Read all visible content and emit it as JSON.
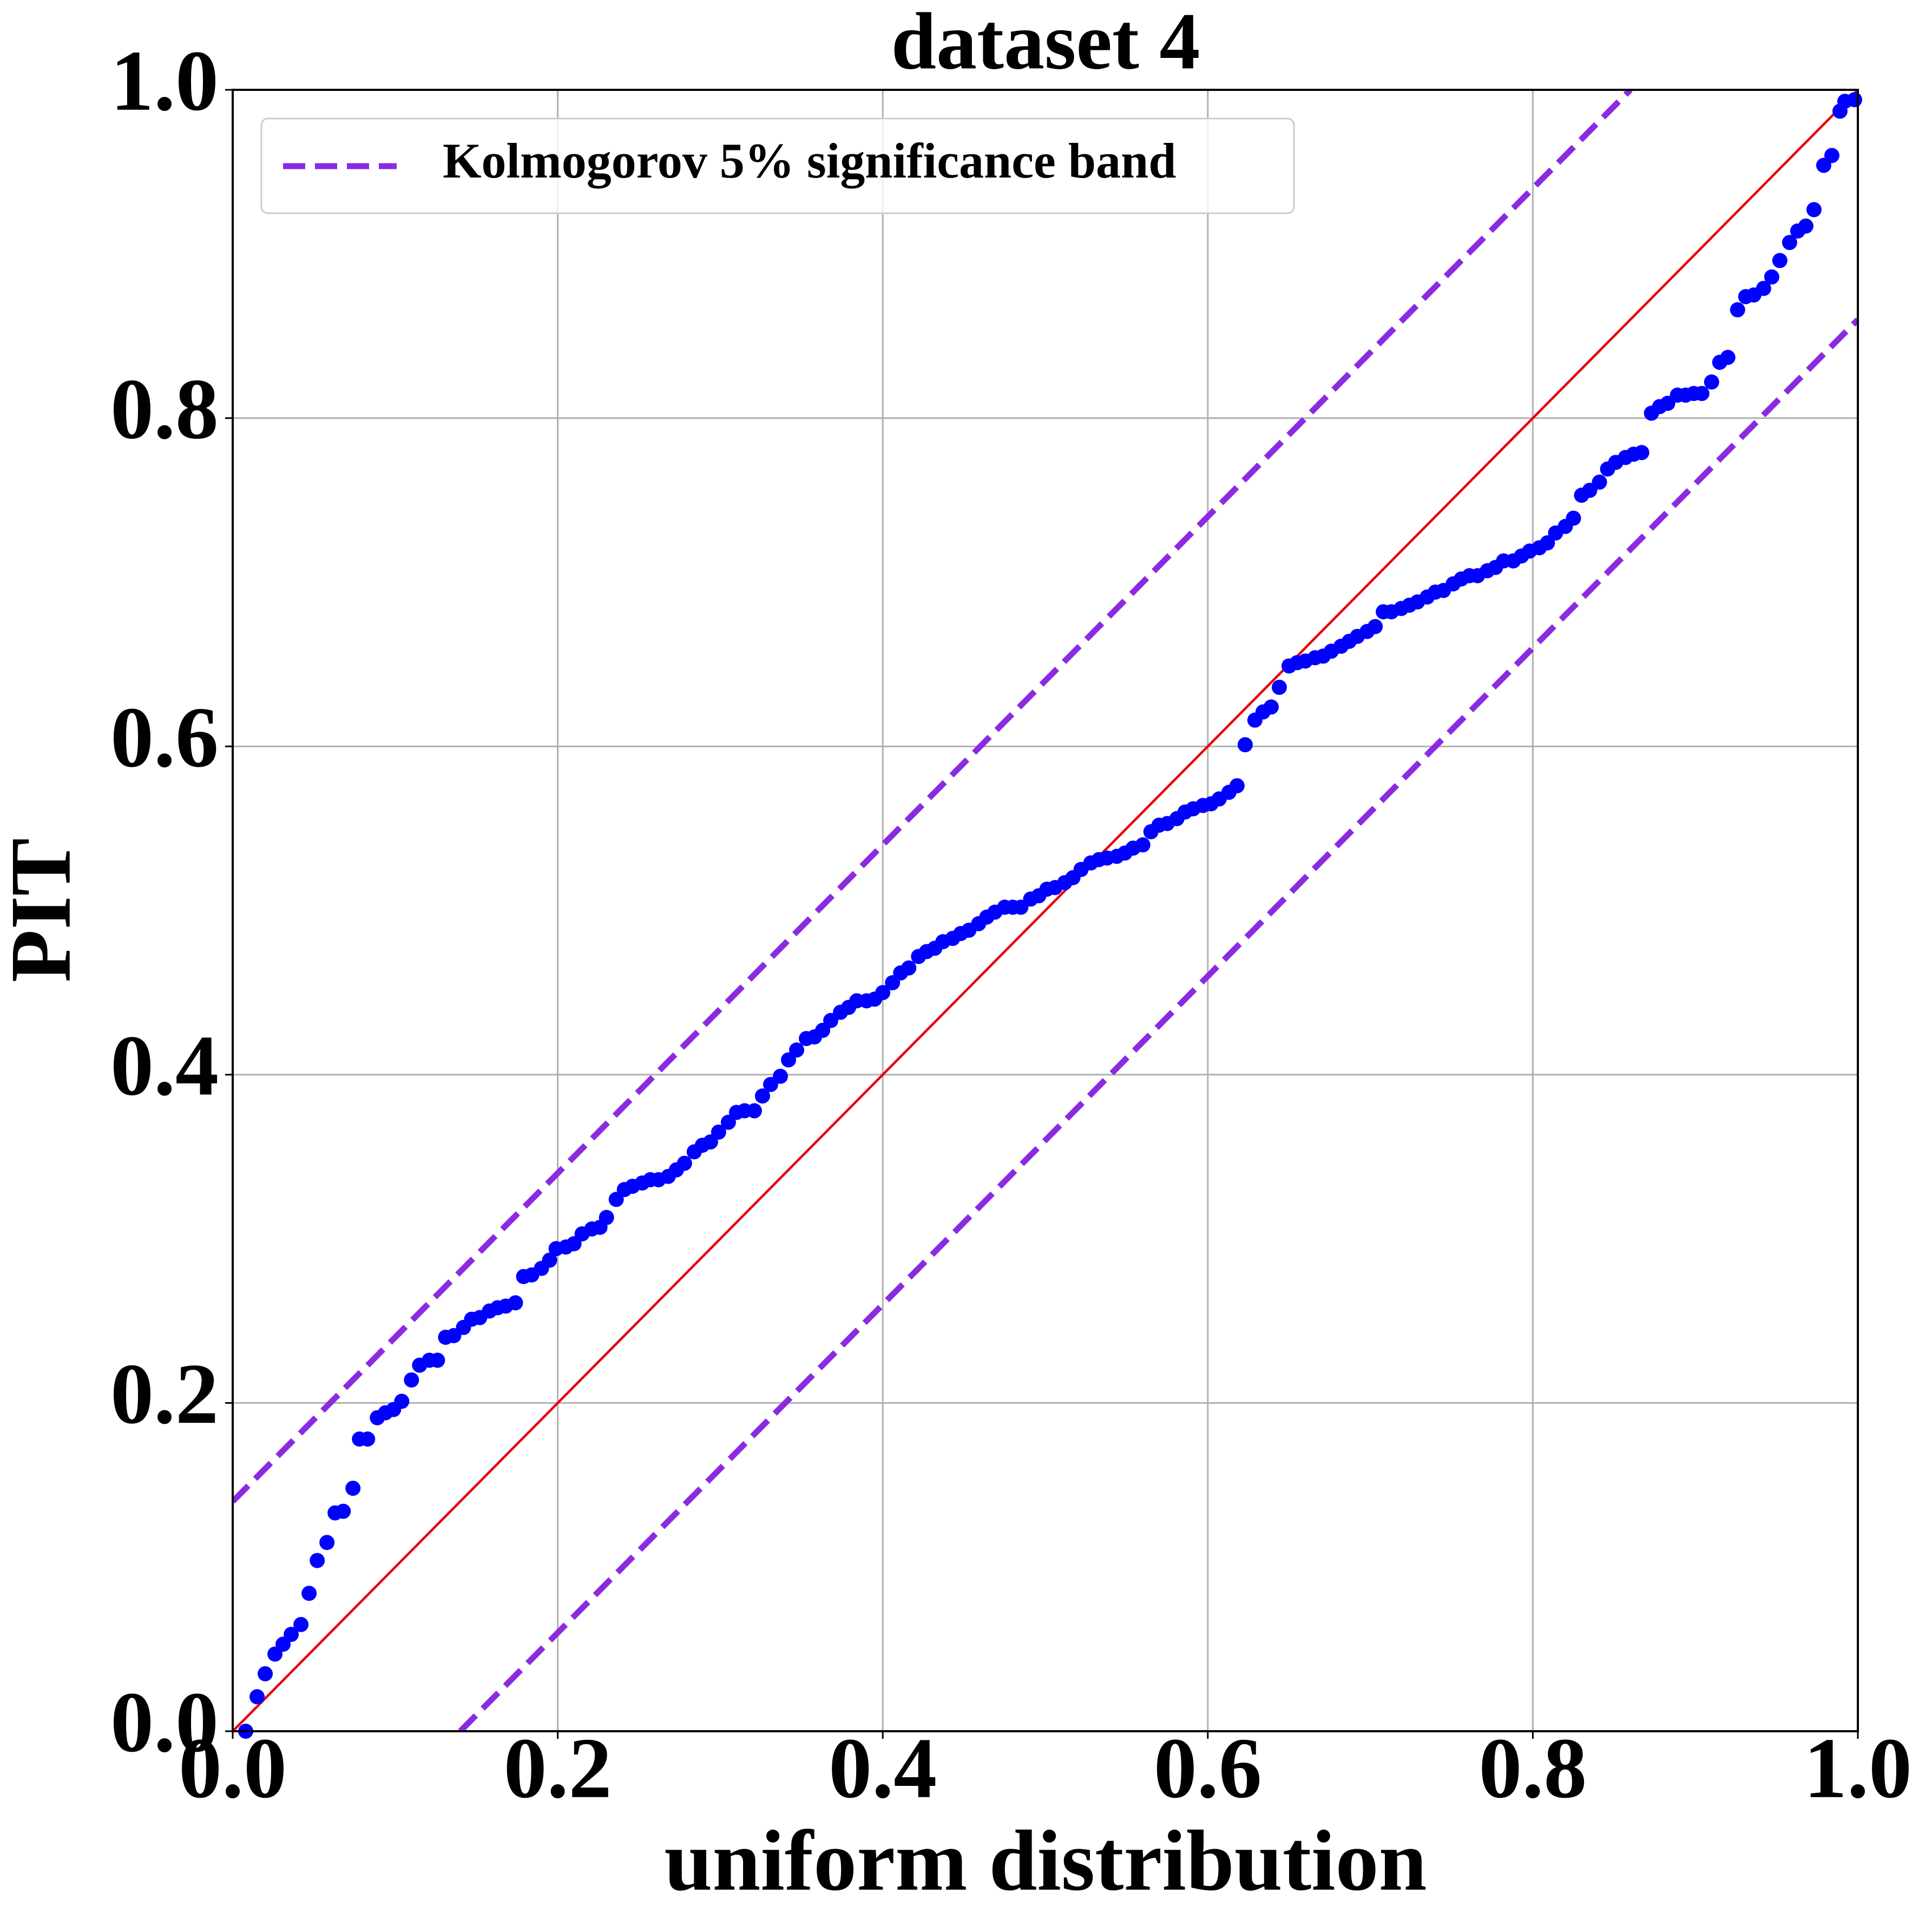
{
  "chart_data": {
    "type": "scatter",
    "title": "dataset 4",
    "xlabel": "uniform distribution",
    "ylabel": "PIT",
    "xlim": [
      0,
      1
    ],
    "ylim": [
      0,
      1
    ],
    "xticks": [
      {
        "value": 0,
        "label": "0.0"
      },
      0.2,
      0.4,
      0.6,
      0.8,
      {
        "value": 1,
        "label": "1.0"
      }
    ],
    "yticks": [
      {
        "value": 0,
        "label": "0.0"
      },
      0.2,
      0.4,
      0.6,
      0.8,
      {
        "value": 1,
        "label": "1.0"
      }
    ],
    "grid": true,
    "legend": "upper left",
    "series": [
      {
        "color": "#0000ff",
        "line_style": "none",
        "x": [
          0.008,
          0.015,
          0.02,
          0.026,
          0.031,
          0.036,
          0.042,
          0.047,
          0.052,
          0.058,
          0.063,
          0.068,
          0.074,
          0.078,
          0.083,
          0.089,
          0.094,
          0.099,
          0.104,
          0.11,
          0.115,
          0.121,
          0.126,
          0.131,
          0.136,
          0.142,
          0.147,
          0.152,
          0.158,
          0.163,
          0.168,
          0.174,
          0.179,
          0.184,
          0.19,
          0.195,
          0.199,
          0.205,
          0.21,
          0.215,
          0.221,
          0.226,
          0.23,
          0.236,
          0.241,
          0.246,
          0.252,
          0.257,
          0.262,
          0.268,
          0.273,
          0.278,
          0.284,
          0.289,
          0.294,
          0.299,
          0.305,
          0.31,
          0.315,
          0.321,
          0.326,
          0.331,
          0.337,
          0.342,
          0.347,
          0.353,
          0.358,
          0.363,
          0.368,
          0.374,
          0.379,
          0.384,
          0.39,
          0.395,
          0.4,
          0.406,
          0.411,
          0.416,
          0.422,
          0.427,
          0.432,
          0.437,
          0.443,
          0.448,
          0.453,
          0.459,
          0.464,
          0.469,
          0.475,
          0.48,
          0.485,
          0.491,
          0.496,
          0.501,
          0.506,
          0.512,
          0.517,
          0.522,
          0.528,
          0.533,
          0.538,
          0.544,
          0.549,
          0.554,
          0.56,
          0.565,
          0.57,
          0.575,
          0.581,
          0.586,
          0.591,
          0.597,
          0.602,
          0.607,
          0.613,
          0.618,
          0.623,
          0.629,
          0.634,
          0.639,
          0.644,
          0.65,
          0.655,
          0.66,
          0.666,
          0.671,
          0.676,
          0.682,
          0.687,
          0.692,
          0.698,
          0.703,
          0.708,
          0.713,
          0.719,
          0.724,
          0.729,
          0.735,
          0.74,
          0.745,
          0.751,
          0.756,
          0.761,
          0.766,
          0.772,
          0.777,
          0.782,
          0.788,
          0.793,
          0.798,
          0.804,
          0.809,
          0.814,
          0.82,
          0.825,
          0.83,
          0.835,
          0.841,
          0.846,
          0.851,
          0.857,
          0.862,
          0.867,
          0.873,
          0.878,
          0.883,
          0.889,
          0.894,
          0.899,
          0.904,
          0.91,
          0.915,
          0.92,
          0.926,
          0.931,
          0.936,
          0.942,
          0.947,
          0.952,
          0.958,
          0.963,
          0.968,
          0.973,
          0.979,
          0.984,
          0.989,
          0.992,
          0.998
        ],
        "values": [
          0,
          0.021,
          0.035,
          0.047,
          0.053,
          0.059,
          0.065,
          0.084,
          0.104,
          0.115,
          0.133,
          0.134,
          0.148,
          0.178,
          0.178,
          0.191,
          0.194,
          0.196,
          0.201,
          0.214,
          0.223,
          0.226,
          0.226,
          0.24,
          0.241,
          0.246,
          0.251,
          0.252,
          0.256,
          0.258,
          0.259,
          0.261,
          0.277,
          0.278,
          0.282,
          0.287,
          0.294,
          0.295,
          0.297,
          0.303,
          0.306,
          0.307,
          0.313,
          0.324,
          0.33,
          0.332,
          0.334,
          0.336,
          0.336,
          0.338,
          0.342,
          0.346,
          0.353,
          0.357,
          0.359,
          0.365,
          0.371,
          0.377,
          0.378,
          0.378,
          0.387,
          0.394,
          0.399,
          0.409,
          0.415,
          0.422,
          0.423,
          0.427,
          0.433,
          0.438,
          0.441,
          0.445,
          0.445,
          0.446,
          0.45,
          0.456,
          0.462,
          0.465,
          0.472,
          0.475,
          0.477,
          0.481,
          0.483,
          0.486,
          0.488,
          0.492,
          0.496,
          0.499,
          0.502,
          0.502,
          0.502,
          0.507,
          0.509,
          0.513,
          0.514,
          0.517,
          0.52,
          0.525,
          0.529,
          0.531,
          0.532,
          0.533,
          0.535,
          0.538,
          0.54,
          0.548,
          0.552,
          0.553,
          0.556,
          0.56,
          0.562,
          0.564,
          0.565,
          0.568,
          0.572,
          0.576,
          0.601,
          0.616,
          0.621,
          0.624,
          0.636,
          0.649,
          0.651,
          0.652,
          0.654,
          0.655,
          0.658,
          0.661,
          0.664,
          0.667,
          0.67,
          0.673,
          0.682,
          0.682,
          0.684,
          0.686,
          0.688,
          0.691,
          0.694,
          0.695,
          0.699,
          0.702,
          0.704,
          0.704,
          0.707,
          0.709,
          0.713,
          0.713,
          0.716,
          0.719,
          0.721,
          0.724,
          0.73,
          0.734,
          0.739,
          0.753,
          0.756,
          0.761,
          0.769,
          0.773,
          0.776,
          0.778,
          0.779,
          0.803,
          0.807,
          0.809,
          0.814,
          0.814,
          0.815,
          0.815,
          0.822,
          0.834,
          0.837,
          0.866,
          0.874,
          0.875,
          0.879,
          0.886,
          0.896,
          0.907,
          0.914,
          0.917,
          0.927,
          0.954,
          0.96,
          0.987,
          0.993,
          0.994
        ]
      },
      {
        "color": "#e8000b",
        "line_style": "solid",
        "x": [
          0,
          1
        ],
        "values": [
          0,
          1
        ]
      },
      {
        "name": "Kolmogorov 5% significance band",
        "color": "#8a2be2",
        "line_style": "dashed",
        "x": [
          0,
          0.86
        ],
        "values": [
          0.14,
          1
        ]
      },
      {
        "color": "#8a2be2",
        "line_style": "dashed",
        "x": [
          0.14,
          1
        ],
        "values": [
          0,
          0.86
        ]
      }
    ]
  }
}
